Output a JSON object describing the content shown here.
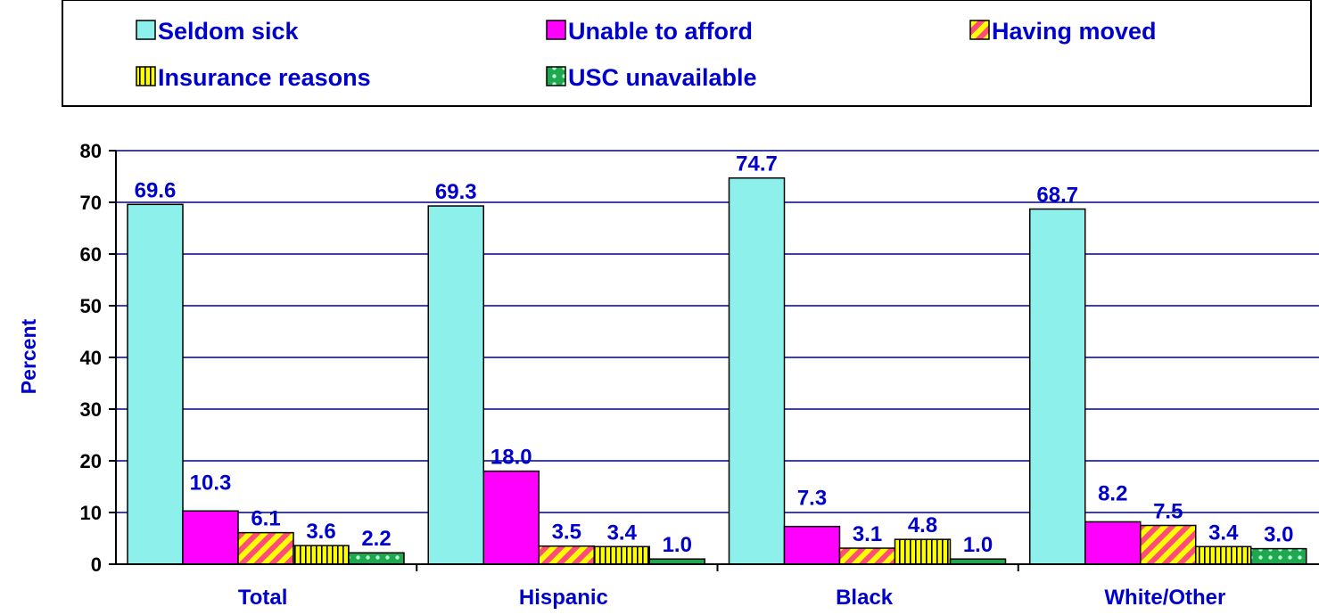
{
  "colors": {
    "seldom": "#8ef0ea",
    "afford": "#ff00ff",
    "moved_bg": "#ffff00",
    "moved_stripe": "#ff4c7a",
    "insurance_bg": "#ffff00",
    "insurance_stripe": "#000000",
    "usc_bg": "#1fa850",
    "usc_dot": "#b8ffd4",
    "text": "#0000cc",
    "axis": "#000000",
    "grid": "#000080"
  },
  "chart_data": {
    "type": "bar",
    "ylabel": "Percent",
    "xlabel": "",
    "ylim": [
      0,
      80
    ],
    "yticks": [
      0,
      10,
      20,
      30,
      40,
      50,
      60,
      70,
      80
    ],
    "grid": true,
    "legend_position": "top",
    "categories": [
      "Total",
      "Hispanic",
      "Black",
      "White/Other"
    ],
    "series": [
      {
        "name": "Seldom sick",
        "pattern": "solid-cyan",
        "values": [
          69.6,
          69.3,
          74.7,
          68.7
        ],
        "labels": [
          "69.6",
          "69.3",
          "74.7",
          "68.7"
        ]
      },
      {
        "name": "Unable to afford",
        "pattern": "solid-magenta",
        "values": [
          10.3,
          18.0,
          7.3,
          8.2
        ],
        "labels": [
          "10.3",
          "18.0",
          "7.3",
          "8.2"
        ]
      },
      {
        "name": "Having moved",
        "pattern": "diagonal-stripes",
        "values": [
          6.1,
          3.5,
          3.1,
          7.5
        ],
        "labels": [
          "6.1",
          "3.5",
          "3.1",
          "7.5"
        ]
      },
      {
        "name": "Insurance reasons",
        "pattern": "vertical-stripes",
        "values": [
          3.6,
          3.4,
          4.8,
          3.4
        ],
        "labels": [
          "3.6",
          "3.4",
          "4.8",
          "3.4"
        ]
      },
      {
        "name": "USC unavailable",
        "pattern": "green-dots",
        "values": [
          2.2,
          1.0,
          1.0,
          3.0
        ],
        "labels": [
          "2.2",
          "1.0",
          "1.0",
          "3.0"
        ]
      }
    ]
  }
}
